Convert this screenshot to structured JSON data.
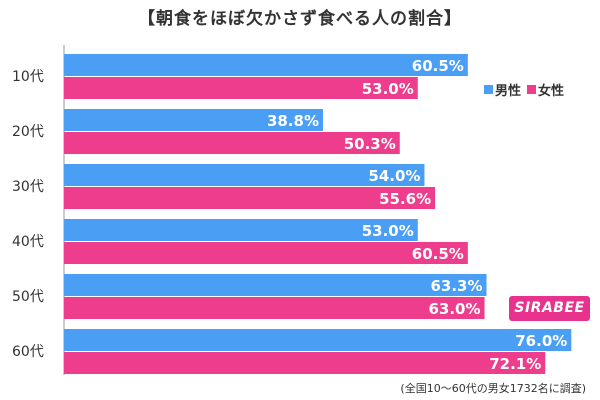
{
  "title": "【朝食をほぼ欠かさず食べる人の割合】",
  "legend": {
    "male": "男性",
    "female": "女性"
  },
  "logo_text": "SIRABEE",
  "footnote": "(全国10～60代の男女1732名に調査)",
  "colors": {
    "male": "#4a9ff5",
    "female": "#ee3d8d",
    "axis": "#999999"
  },
  "chart_data": {
    "type": "bar",
    "orientation": "horizontal",
    "title": "【朝食をほぼ欠かさず食べる人の割合】",
    "categories": [
      "10代",
      "20代",
      "30代",
      "40代",
      "50代",
      "60代"
    ],
    "series": [
      {
        "name": "男性",
        "values": [
          60.5,
          38.8,
          54.0,
          53.0,
          63.3,
          76.0
        ]
      },
      {
        "name": "女性",
        "values": [
          53.0,
          50.3,
          55.6,
          60.5,
          63.0,
          72.1
        ]
      }
    ],
    "value_labels": {
      "男性": [
        "60.5%",
        "38.8%",
        "54.0%",
        "53.0%",
        "63.3%",
        "76.0%"
      ],
      "女性": [
        "53.0%",
        "50.3%",
        "55.6%",
        "60.5%",
        "63.0%",
        "72.1%"
      ]
    },
    "xlim": [
      0,
      80
    ],
    "grid": false,
    "legend_position": "top-right"
  }
}
